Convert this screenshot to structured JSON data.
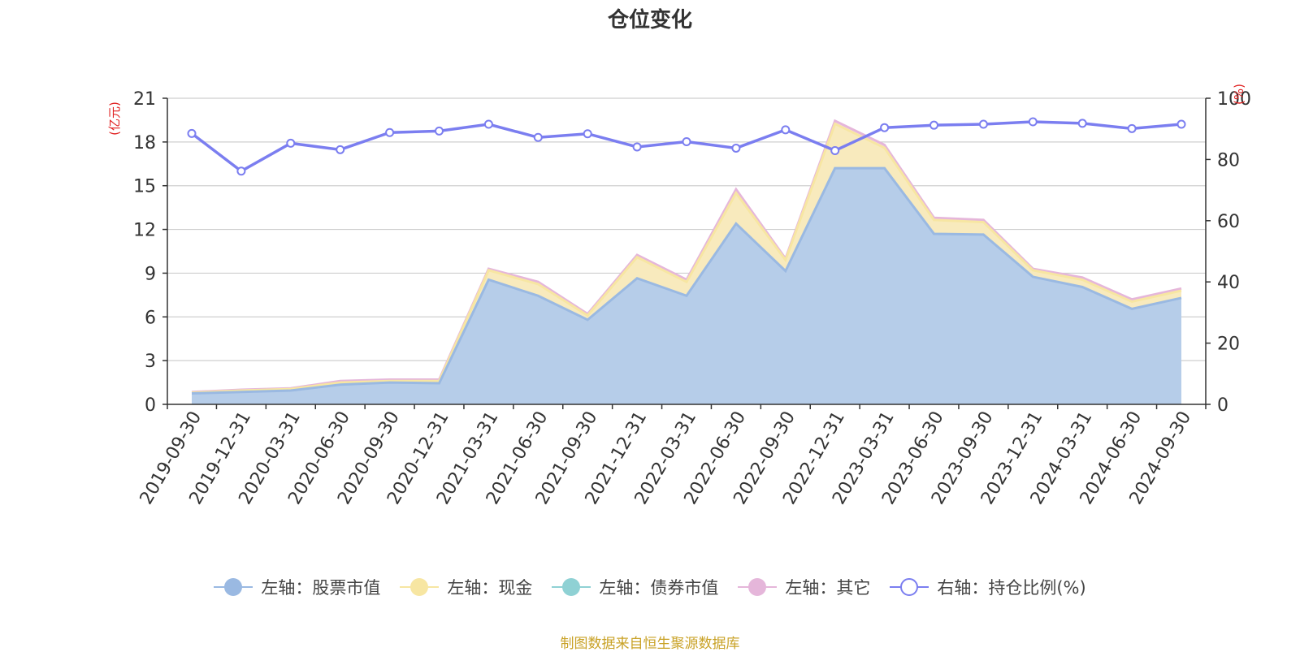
{
  "chart_data": {
    "type": "area",
    "title": "仓位变化",
    "categories": [
      "2019-09-30",
      "2019-12-31",
      "2020-03-31",
      "2020-06-30",
      "2020-09-30",
      "2020-12-31",
      "2021-03-31",
      "2021-06-30",
      "2021-09-30",
      "2021-12-31",
      "2022-03-31",
      "2022-06-30",
      "2022-09-30",
      "2022-12-31",
      "2023-03-31",
      "2023-06-30",
      "2023-09-30",
      "2023-12-31",
      "2024-03-31",
      "2024-06-30",
      "2024-09-30"
    ],
    "y_left": {
      "label": "(亿元)",
      "ylim": [
        0,
        21
      ],
      "ticks": [
        "0",
        "3",
        "6",
        "9",
        "12",
        "15",
        "18",
        "21"
      ]
    },
    "y_right": {
      "label": "(%)",
      "ylim": [
        0,
        100
      ],
      "ticks": [
        "0",
        "20",
        "40",
        "60",
        "80",
        "100"
      ]
    },
    "grid": true,
    "legend_position": "bottom",
    "series": [
      {
        "name": "左轴：股票市值",
        "axis": "left",
        "type": "stacked-area",
        "color": "#9ab9e2",
        "fill": "#b6cde9",
        "values": [
          0.75,
          0.85,
          0.95,
          1.35,
          1.5,
          1.45,
          8.55,
          7.45,
          5.8,
          8.65,
          7.45,
          12.4,
          9.15,
          16.2,
          16.2,
          11.7,
          11.65,
          8.75,
          8.05,
          6.55,
          7.3
        ]
      },
      {
        "name": "左轴：现金",
        "axis": "left",
        "type": "stacked-area",
        "color": "#f7e6a2",
        "fill": "#f8eabd",
        "values": [
          0.05,
          0.1,
          0.1,
          0.15,
          0.1,
          0.15,
          0.65,
          0.8,
          0.3,
          1.45,
          0.95,
          2.1,
          0.75,
          3.05,
          1.4,
          0.95,
          0.85,
          0.45,
          0.5,
          0.5,
          0.5
        ]
      },
      {
        "name": "左轴：债券市值",
        "axis": "left",
        "type": "stacked-area",
        "color": "#8fd1d4",
        "fill": "#8fd1d4",
        "values": [
          0,
          0,
          0,
          0,
          0,
          0,
          0,
          0,
          0,
          0,
          0,
          0,
          0,
          0,
          0,
          0,
          0,
          0,
          0,
          0,
          0
        ]
      },
      {
        "name": "左轴：其它",
        "axis": "left",
        "type": "stacked-area",
        "color": "#e5b6da",
        "fill": "#f3d9ec",
        "values": [
          0.05,
          0.05,
          0.05,
          0.1,
          0.1,
          0.1,
          0.1,
          0.15,
          0.1,
          0.15,
          0.15,
          0.25,
          0.1,
          0.2,
          0.2,
          0.15,
          0.15,
          0.1,
          0.15,
          0.15,
          0.15
        ]
      },
      {
        "name": "右轴：持仓比例(%)",
        "axis": "right",
        "type": "line",
        "color": "#7b7ef0",
        "values": [
          88.5,
          76.2,
          85.3,
          83.2,
          88.8,
          89.3,
          91.5,
          87.2,
          88.4,
          84.1,
          85.8,
          83.7,
          89.7,
          82.9,
          90.4,
          91.2,
          91.5,
          92.3,
          91.8,
          90.1,
          91.5
        ]
      }
    ]
  },
  "source_note": "制图数据来自恒生聚源数据库"
}
